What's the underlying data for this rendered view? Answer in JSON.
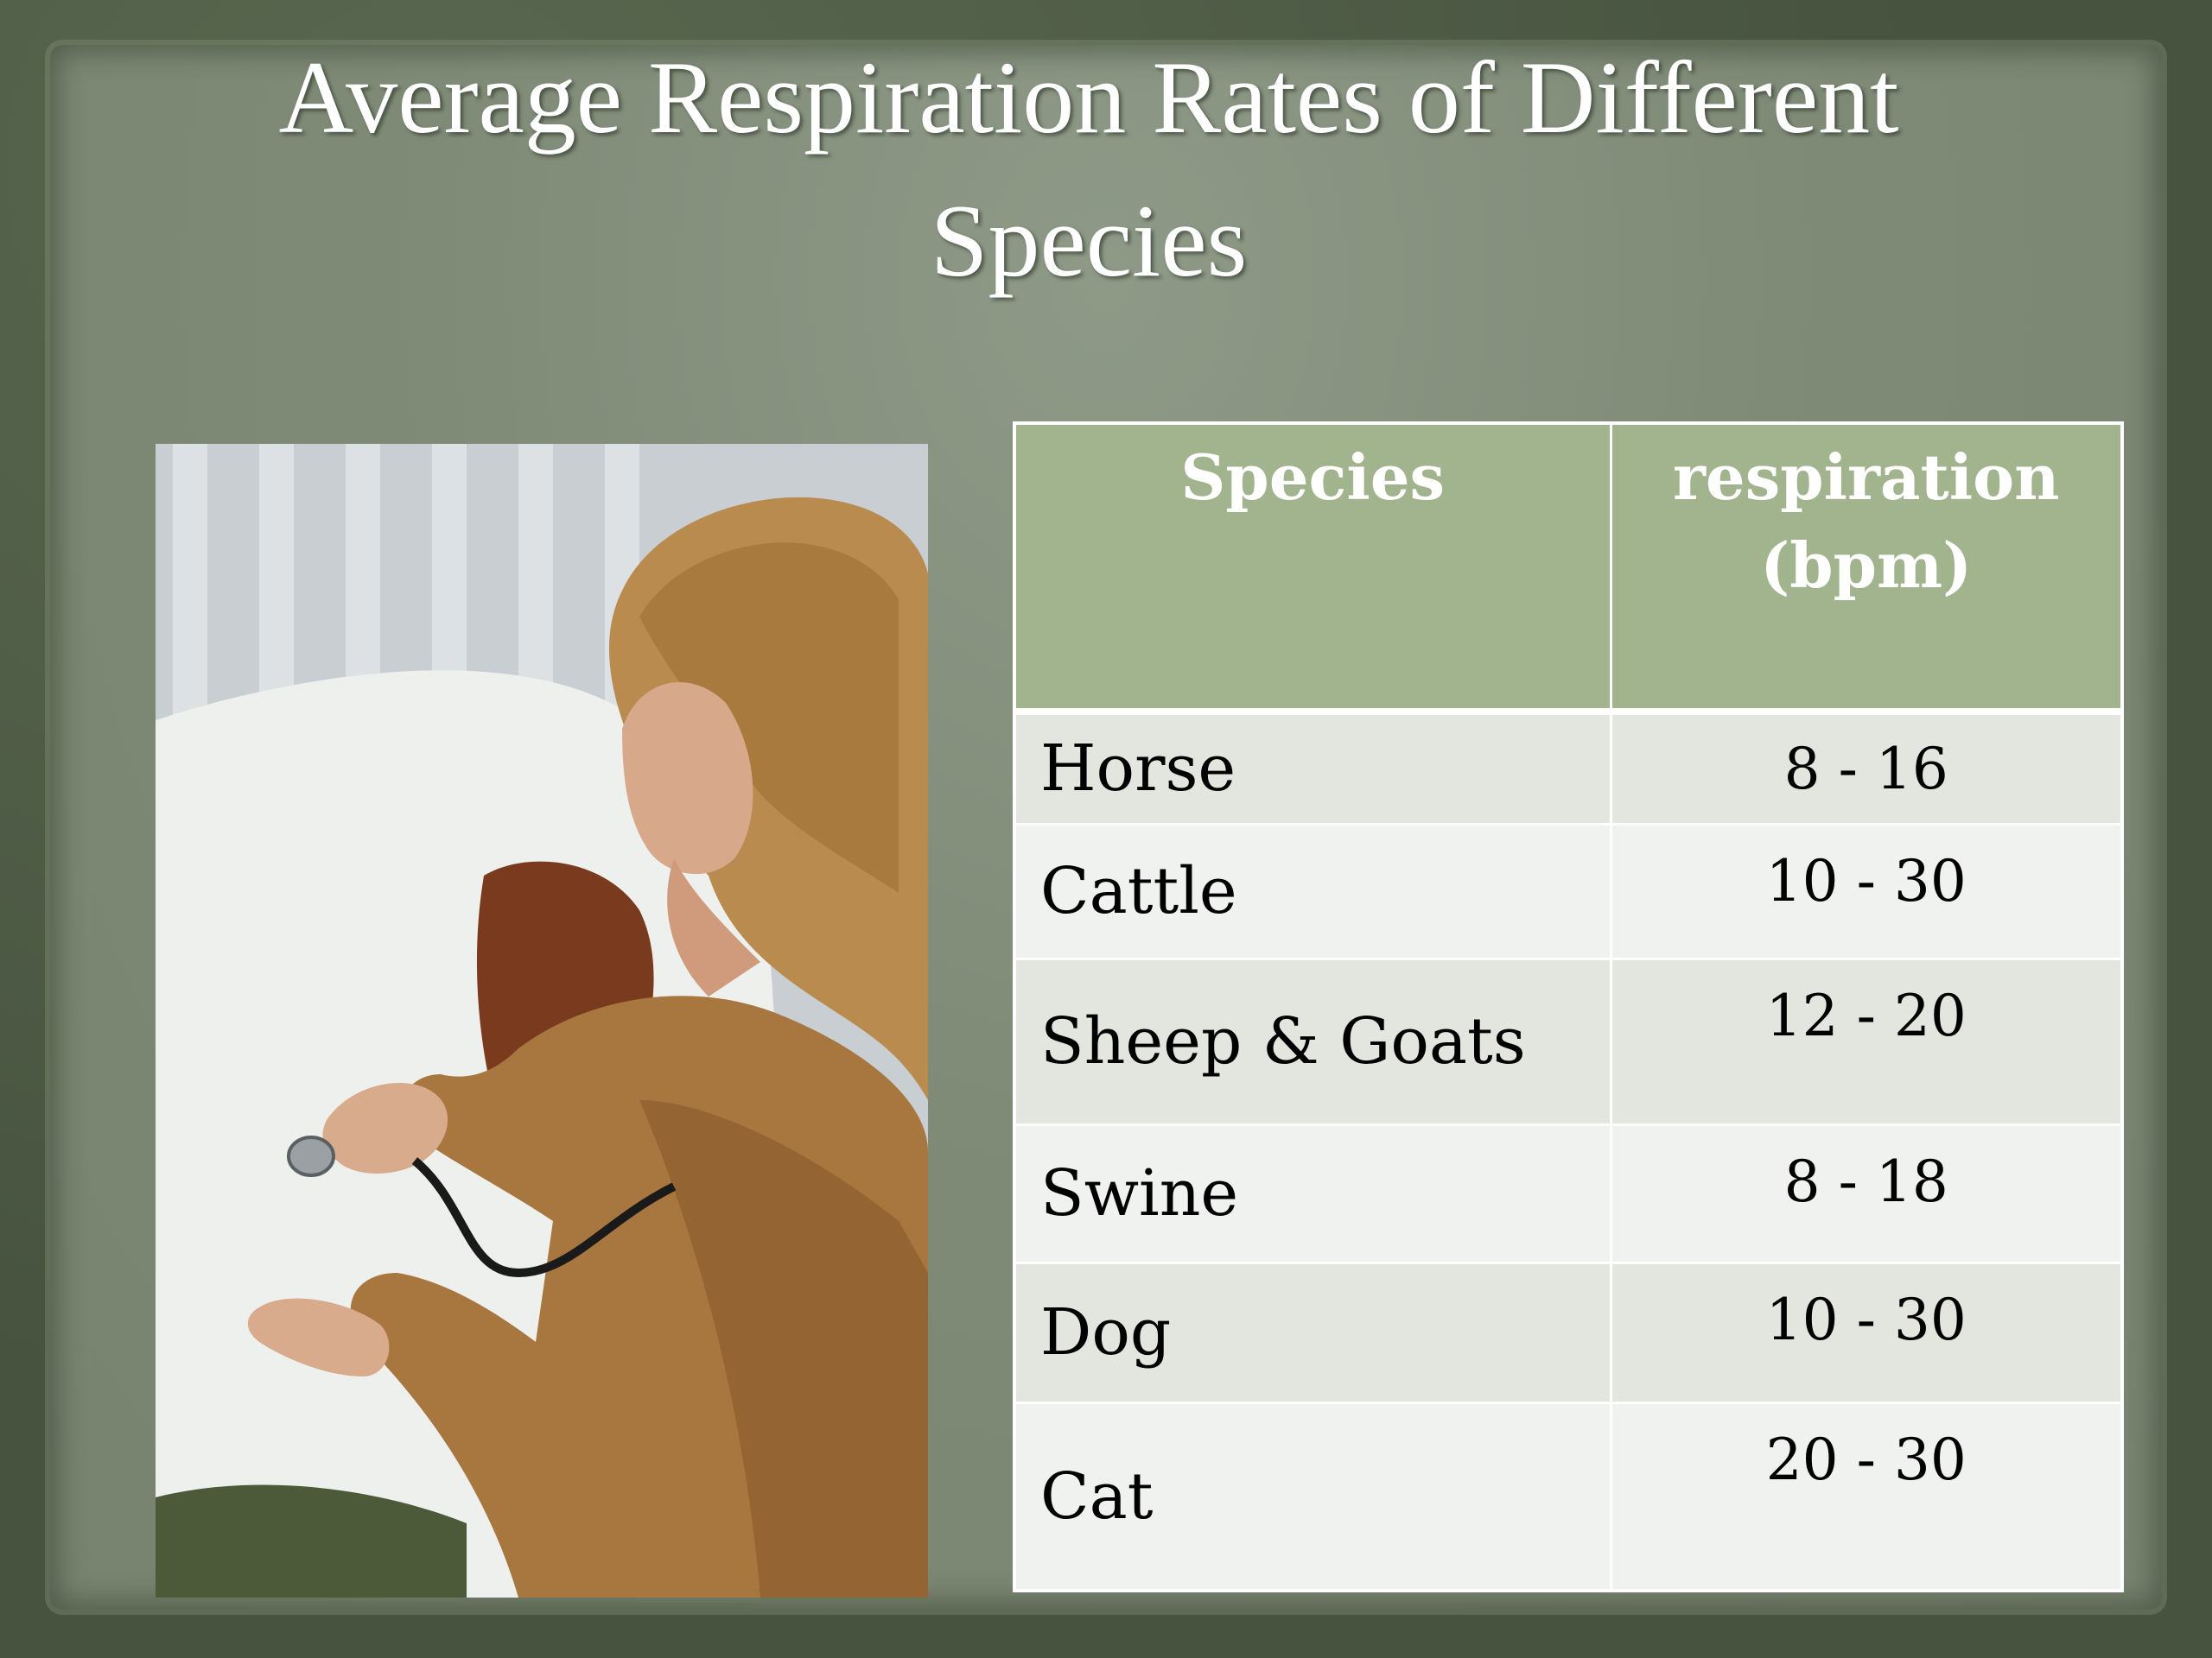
{
  "slide": {
    "title_line1": "Average Respiration Rates of Different",
    "title_line2": "Species"
  },
  "table": {
    "headers": {
      "species": "Species",
      "respiration_line1": "respiration",
      "respiration_line2": "(bpm)"
    },
    "rows": [
      {
        "species": "Horse",
        "rate": "8 - 16"
      },
      {
        "species": "Cattle",
        "rate": "10 - 30"
      },
      {
        "species": "Sheep & Goats",
        "rate": "12 - 20"
      },
      {
        "species": "Swine",
        "rate": "8 - 18"
      },
      {
        "species": "Dog",
        "rate": "10 - 30"
      },
      {
        "species": "Cat",
        "rate": "20 - 30"
      }
    ]
  },
  "colors": {
    "header_bg": "#a2b48e",
    "row_odd": "#e3e6df",
    "row_even": "#eff2ee",
    "panel": "#7f8b77",
    "frame": "#56624c"
  },
  "photo": {
    "subject": "veterinarian-with-stethoscope-on-cow"
  }
}
